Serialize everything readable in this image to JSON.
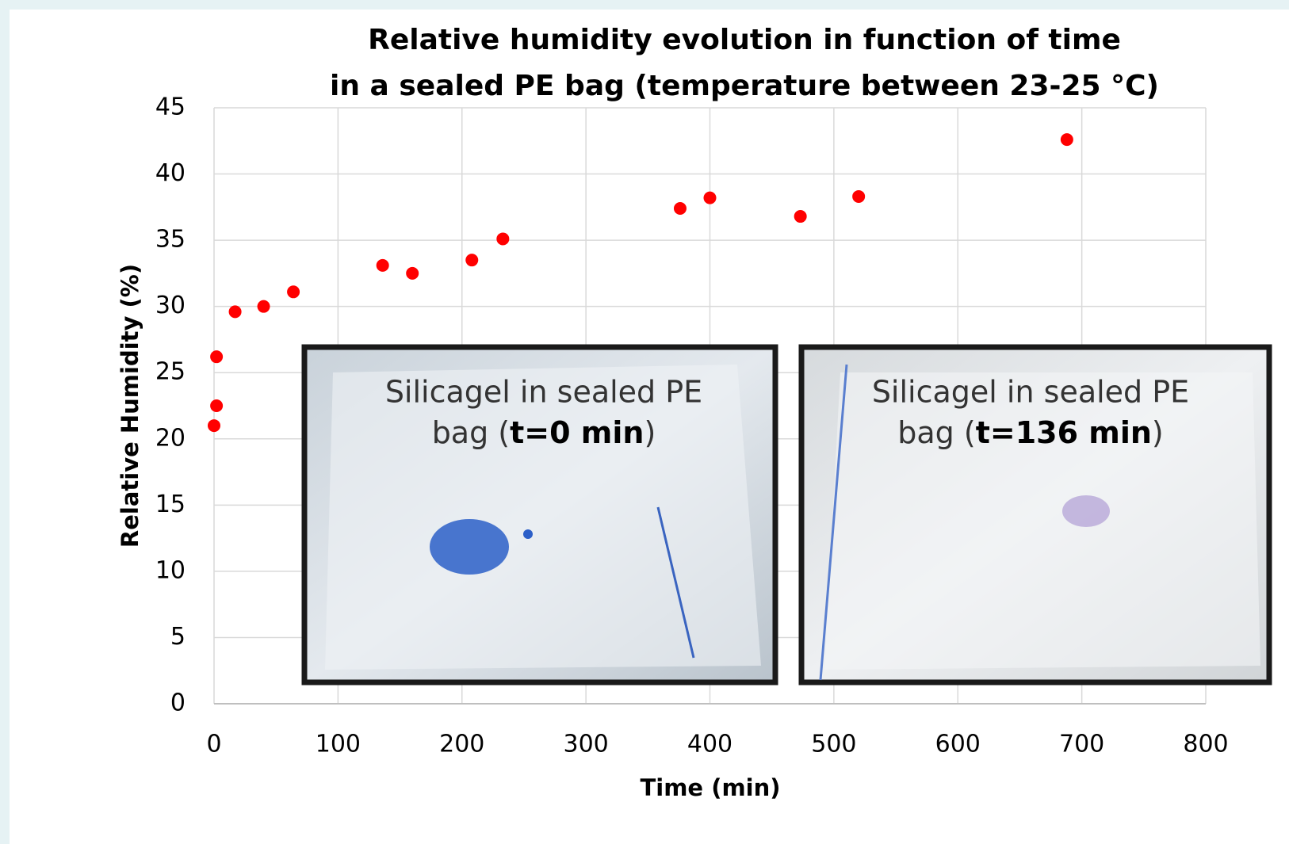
{
  "chart_data": {
    "type": "scatter",
    "title": [
      "Relative humidity evolution in function of time",
      "in a sealed PE bag (temperature between 23-25 °C)"
    ],
    "x_label": "Time (min)",
    "y_label": "Relative Humidity (%)",
    "x": [
      0,
      2,
      2,
      17,
      40,
      64,
      136,
      160,
      208,
      233,
      376,
      400,
      473,
      520,
      688
    ],
    "series": [
      {
        "color": "#ff0000",
        "values": [
          21.0,
          22.5,
          26.2,
          29.6,
          30.0,
          31.1,
          33.1,
          32.5,
          33.5,
          35.1,
          37.4,
          38.2,
          36.8,
          38.3,
          42.6
        ]
      }
    ],
    "xlim": [
      0,
      800
    ],
    "ylim": [
      0,
      45
    ],
    "xticks": [
      0,
      100,
      200,
      300,
      400,
      500,
      600,
      700,
      800
    ],
    "yticks": [
      0,
      5,
      10,
      15,
      20,
      25,
      30,
      35,
      40,
      45
    ],
    "grid": true,
    "annotations": [
      {
        "line1": "Silicagel in sealed PE",
        "line2_start": "bag (",
        "line2_bold": "t=0 min",
        "line2_end": ")"
      },
      {
        "line1": "Silicagel in sealed PE",
        "line2_start": "bag (",
        "line2_bold": "t=136 min",
        "line2_end": ")"
      }
    ]
  }
}
